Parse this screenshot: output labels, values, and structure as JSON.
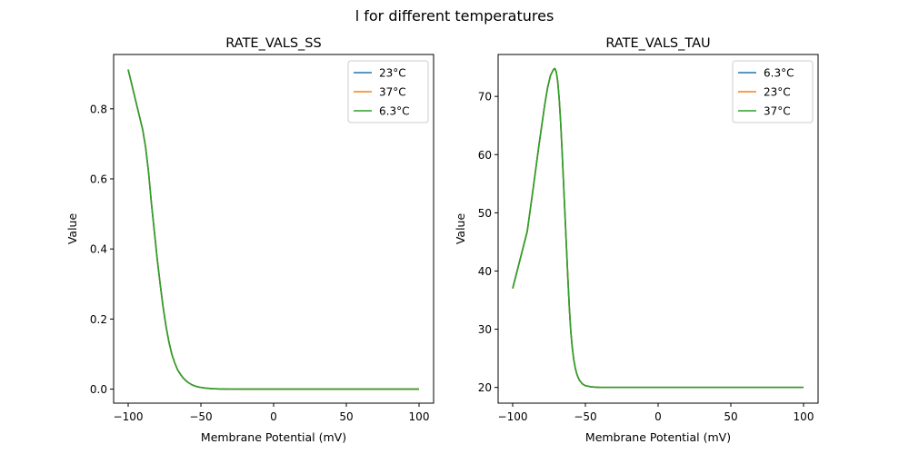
{
  "suptitle": "l for different temperatures",
  "chart_data": [
    {
      "type": "line",
      "title": "RATE_VALS_SS",
      "xlabel": "Membrane Potential (mV)",
      "ylabel": "Value",
      "xlim": [
        -110,
        110
      ],
      "ylim": [
        -0.04,
        0.955
      ],
      "xticks": [
        -100,
        -50,
        0,
        50,
        100
      ],
      "xtick_labels": [
        "−100",
        "−50",
        "0",
        "50",
        "100"
      ],
      "yticks": [
        0.0,
        0.2,
        0.4,
        0.6,
        0.8
      ],
      "ytick_labels": [
        "0.0",
        "0.2",
        "0.4",
        "0.6",
        "0.8"
      ],
      "legend_position": "top-right",
      "x": [
        -100,
        -90,
        -88,
        -86,
        -84,
        -82,
        -80,
        -78,
        -76,
        -74,
        -72,
        -70,
        -68,
        -66,
        -64,
        -62,
        -60,
        -58,
        -56,
        -54,
        -52,
        -50,
        -46,
        -42,
        -38,
        -34,
        -30,
        -20,
        0,
        50,
        100
      ],
      "series": [
        {
          "name": "23°C",
          "color": "#1f77b4",
          "values": [
            0.912,
            0.74,
            0.69,
            0.62,
            0.53,
            0.45,
            0.37,
            0.3,
            0.235,
            0.18,
            0.135,
            0.1,
            0.075,
            0.055,
            0.042,
            0.031,
            0.023,
            0.017,
            0.012,
            0.0088,
            0.0064,
            0.0047,
            0.0025,
            0.0013,
            0.0007,
            0.0004,
            0.0002,
            3e-05,
            0.0,
            0.0,
            0.0
          ]
        },
        {
          "name": "37°C",
          "color": "#ff7f0e",
          "values": [
            0.912,
            0.74,
            0.69,
            0.62,
            0.53,
            0.45,
            0.37,
            0.3,
            0.235,
            0.18,
            0.135,
            0.1,
            0.075,
            0.055,
            0.042,
            0.031,
            0.023,
            0.017,
            0.012,
            0.0088,
            0.0064,
            0.0047,
            0.0025,
            0.0013,
            0.0007,
            0.0004,
            0.0002,
            3e-05,
            0.0,
            0.0,
            0.0
          ]
        },
        {
          "name": "6.3°C",
          "color": "#2ca02c",
          "values": [
            0.912,
            0.74,
            0.69,
            0.62,
            0.53,
            0.45,
            0.37,
            0.3,
            0.235,
            0.18,
            0.135,
            0.1,
            0.075,
            0.055,
            0.042,
            0.031,
            0.023,
            0.017,
            0.012,
            0.0088,
            0.0064,
            0.0047,
            0.0025,
            0.0013,
            0.0007,
            0.0004,
            0.0002,
            3e-05,
            0.0,
            0.0,
            0.0
          ]
        }
      ]
    },
    {
      "type": "line",
      "title": "RATE_VALS_TAU",
      "xlabel": "Membrane Potential (mV)",
      "ylabel": "Value",
      "xlim": [
        -110,
        110
      ],
      "ylim": [
        17.3,
        77.2
      ],
      "xticks": [
        -100,
        -50,
        0,
        50,
        100
      ],
      "xtick_labels": [
        "−100",
        "−50",
        "0",
        "50",
        "100"
      ],
      "yticks": [
        20,
        30,
        40,
        50,
        60,
        70
      ],
      "ytick_labels": [
        "20",
        "30",
        "40",
        "50",
        "60",
        "70"
      ],
      "legend_position": "top-right",
      "x": [
        -100,
        -90,
        -86,
        -82,
        -78,
        -76,
        -74,
        -72,
        -71,
        -70,
        -69,
        -68,
        -67,
        -66,
        -65,
        -64,
        -63,
        -62,
        -61,
        -60,
        -59,
        -58,
        -57,
        -56,
        -55,
        -54,
        -52,
        -50,
        -46,
        -40,
        -30,
        0,
        50,
        100
      ],
      "series": [
        {
          "name": "6.3°C",
          "color": "#1f77b4",
          "values": [
            37.0,
            46.8,
            54.0,
            61.5,
            68.5,
            71.5,
            73.6,
            74.6,
            74.8,
            74.2,
            72.5,
            69.5,
            65.5,
            60.5,
            55.0,
            49.5,
            44.0,
            38.5,
            33.5,
            29.5,
            26.8,
            24.8,
            23.4,
            22.4,
            21.7,
            21.2,
            20.6,
            20.3,
            20.1,
            20.0,
            20.0,
            20.0,
            20.0,
            20.0
          ]
        },
        {
          "name": "23°C",
          "color": "#ff7f0e",
          "values": [
            37.0,
            46.8,
            54.0,
            61.5,
            68.5,
            71.5,
            73.6,
            74.6,
            74.8,
            74.2,
            72.5,
            69.5,
            65.5,
            60.5,
            55.0,
            49.5,
            44.0,
            38.5,
            33.5,
            29.5,
            26.8,
            24.8,
            23.4,
            22.4,
            21.7,
            21.2,
            20.6,
            20.3,
            20.1,
            20.0,
            20.0,
            20.0,
            20.0,
            20.0
          ]
        },
        {
          "name": "37°C",
          "color": "#2ca02c",
          "values": [
            37.0,
            46.8,
            54.0,
            61.5,
            68.5,
            71.5,
            73.6,
            74.6,
            74.8,
            74.2,
            72.5,
            69.5,
            65.5,
            60.5,
            55.0,
            49.5,
            44.0,
            38.5,
            33.5,
            29.5,
            26.8,
            24.8,
            23.4,
            22.4,
            21.7,
            21.2,
            20.6,
            20.3,
            20.1,
            20.0,
            20.0,
            20.0,
            20.0,
            20.0
          ]
        }
      ]
    }
  ]
}
